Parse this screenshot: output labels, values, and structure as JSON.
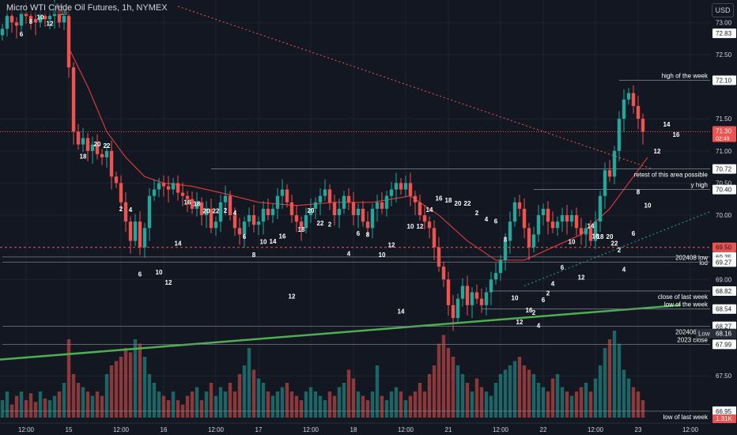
{
  "header": {
    "title": "Micro WTI Crude Oil Futures, 1h, NYMEX",
    "currency": "USD"
  },
  "colors": {
    "bg": "#131722",
    "grid": "#1f2330",
    "up": "#26a69a",
    "down": "#ef5350",
    "trend_green": "#4caf50",
    "ma": "#d43a3a",
    "dotted_red": "#ef5350",
    "text": "#d1d4dc"
  },
  "chart_data": {
    "type": "candlestick",
    "title": "Micro WTI Crude Oil Futures, 1h, NYMEX",
    "ylim": [
      66.85,
      73.25
    ],
    "y_ticks": [
      {
        "v": 73.0,
        "t": "73.00"
      },
      {
        "v": 72.5,
        "t": "72.50"
      },
      {
        "v": 71.5,
        "t": "71.50"
      },
      {
        "v": 71.0,
        "t": "71.00"
      },
      {
        "v": 70.5,
        "t": "70.50"
      },
      {
        "v": 70.0,
        "t": "70.00"
      },
      {
        "v": 69.0,
        "t": "69.00"
      },
      {
        "v": 67.5,
        "t": "67.50"
      }
    ],
    "x_ticks": [
      {
        "i": 5,
        "t": "12:00"
      },
      {
        "i": 14,
        "t": "15"
      },
      {
        "i": 25,
        "t": "12:00"
      },
      {
        "i": 34,
        "t": "16"
      },
      {
        "i": 45,
        "t": "12:00"
      },
      {
        "i": 54,
        "t": "17"
      },
      {
        "i": 65,
        "t": "12:00"
      },
      {
        "i": 74,
        "t": "18"
      },
      {
        "i": 85,
        "t": "12:00"
      },
      {
        "i": 94,
        "t": "21"
      },
      {
        "i": 105,
        "t": "12:00"
      },
      {
        "i": 114,
        "t": "22"
      },
      {
        "i": 125,
        "t": "12:00"
      },
      {
        "i": 134,
        "t": "23"
      },
      {
        "i": 145,
        "t": "12:00"
      }
    ],
    "closes": [
      72.9,
      73.1,
      73.0,
      72.95,
      73.15,
      73.1,
      73.05,
      73.0,
      73.1,
      73.05,
      73.1,
      73.2,
      73.0,
      73.1,
      72.3,
      71.3,
      71.1,
      71.2,
      71.0,
      71.1,
      70.95,
      70.9,
      71.0,
      70.6,
      70.5,
      70.2,
      69.9,
      69.6,
      69.9,
      69.5,
      69.8,
      70.3,
      70.4,
      70.5,
      70.45,
      70.4,
      70.5,
      70.35,
      70.3,
      70.25,
      70.1,
      70.2,
      70.0,
      70.1,
      69.8,
      69.9,
      70.2,
      70.3,
      70.0,
      69.8,
      69.7,
      69.9,
      70.0,
      69.85,
      69.9,
      70.1,
      70.0,
      70.1,
      70.3,
      70.4,
      70.2,
      70.0,
      69.9,
      69.8,
      70.0,
      70.1,
      70.2,
      70.3,
      70.4,
      70.2,
      70.0,
      70.1,
      70.3,
      70.2,
      70.0,
      70.1,
      69.9,
      69.8,
      70.1,
      70.2,
      70.1,
      70.3,
      70.4,
      70.5,
      70.4,
      70.5,
      70.3,
      70.2,
      70.0,
      69.9,
      69.8,
      69.5,
      69.2,
      69.0,
      68.6,
      68.4,
      68.7,
      68.9,
      68.6,
      68.8,
      68.7,
      68.6,
      68.8,
      69.0,
      69.1,
      69.3,
      69.6,
      69.9,
      70.2,
      70.1,
      69.8,
      69.5,
      69.7,
      70.0,
      70.1,
      69.9,
      69.8,
      69.9,
      70.0,
      69.9,
      70.0,
      69.8,
      69.7,
      69.8,
      69.6,
      69.9,
      70.3,
      70.7,
      70.6,
      71.0,
      71.5,
      71.8,
      71.9,
      71.7,
      71.5,
      71.3
    ],
    "opens": [
      72.8,
      72.9,
      73.1,
      73.0,
      72.95,
      73.15,
      73.1,
      73.05,
      73.0,
      73.1,
      73.05,
      73.1,
      73.2,
      73.0,
      73.1,
      72.3,
      71.3,
      71.1,
      71.2,
      71.0,
      71.1,
      70.95,
      70.9,
      71.0,
      70.6,
      70.5,
      70.2,
      69.9,
      69.6,
      69.9,
      69.5,
      69.8,
      70.3,
      70.4,
      70.5,
      70.45,
      70.4,
      70.5,
      70.35,
      70.3,
      70.25,
      70.1,
      70.2,
      70.0,
      70.1,
      69.8,
      69.9,
      70.2,
      70.3,
      70.0,
      69.8,
      69.7,
      69.9,
      70.0,
      69.85,
      69.9,
      70.1,
      70.0,
      70.1,
      70.3,
      70.4,
      70.2,
      70.0,
      69.9,
      69.8,
      70.0,
      70.1,
      70.2,
      70.3,
      70.4,
      70.2,
      70.0,
      70.1,
      70.3,
      70.2,
      70.0,
      70.1,
      69.9,
      69.8,
      70.1,
      70.2,
      70.1,
      70.3,
      70.4,
      70.5,
      70.4,
      70.5,
      70.3,
      70.2,
      70.0,
      69.9,
      69.8,
      69.5,
      69.2,
      69.0,
      68.6,
      68.4,
      68.7,
      68.9,
      68.6,
      68.8,
      68.7,
      68.6,
      68.8,
      69.0,
      69.1,
      69.3,
      69.6,
      69.9,
      70.2,
      70.1,
      69.8,
      69.5,
      69.7,
      70.0,
      70.1,
      69.9,
      69.8,
      69.9,
      70.0,
      69.9,
      70.0,
      69.8,
      69.7,
      69.8,
      69.6,
      69.9,
      70.3,
      70.7,
      70.6,
      71.0,
      71.5,
      71.8,
      71.9,
      71.7,
      71.5
    ],
    "volumes": [
      0.2,
      0.3,
      0.15,
      0.25,
      0.3,
      0.2,
      0.28,
      0.18,
      0.3,
      0.22,
      0.2,
      0.25,
      0.3,
      0.4,
      0.9,
      0.5,
      0.4,
      0.35,
      0.3,
      0.25,
      0.3,
      0.25,
      0.5,
      0.6,
      0.65,
      0.7,
      0.8,
      0.75,
      0.9,
      0.85,
      0.7,
      0.5,
      0.4,
      0.3,
      0.25,
      0.2,
      0.3,
      0.2,
      0.15,
      0.25,
      0.3,
      0.35,
      0.2,
      0.3,
      0.4,
      0.25,
      0.35,
      0.3,
      0.4,
      0.3,
      0.5,
      0.6,
      0.8,
      0.55,
      0.45,
      0.4,
      0.3,
      0.25,
      0.3,
      0.35,
      0.4,
      0.3,
      0.25,
      0.2,
      0.3,
      0.35,
      0.3,
      0.25,
      0.2,
      0.3,
      0.25,
      0.35,
      0.4,
      0.55,
      0.45,
      0.3,
      0.25,
      0.2,
      0.3,
      0.6,
      0.25,
      0.2,
      0.3,
      0.35,
      0.3,
      0.2,
      0.25,
      0.3,
      0.4,
      0.3,
      0.5,
      0.6,
      0.85,
      0.95,
      0.8,
      0.7,
      0.6,
      0.5,
      0.4,
      0.3,
      0.45,
      0.35,
      0.3,
      0.25,
      0.4,
      0.5,
      0.55,
      0.6,
      0.65,
      0.7,
      0.6,
      0.55,
      0.5,
      0.4,
      0.35,
      0.3,
      0.45,
      0.5,
      0.35,
      0.3,
      0.25,
      0.3,
      0.35,
      0.4,
      0.3,
      0.45,
      0.6,
      0.8,
      0.9,
      1.0,
      0.85,
      0.55,
      0.45,
      0.35,
      0.3,
      0.2
    ],
    "moving_average": [
      {
        "i": 14,
        "v": 72.6
      },
      {
        "i": 18,
        "v": 72.0
      },
      {
        "i": 22,
        "v": 71.3
      },
      {
        "i": 26,
        "v": 70.9
      },
      {
        "i": 30,
        "v": 70.6
      },
      {
        "i": 34,
        "v": 70.5
      },
      {
        "i": 40,
        "v": 70.45
      },
      {
        "i": 46,
        "v": 70.35
      },
      {
        "i": 54,
        "v": 70.2
      },
      {
        "i": 62,
        "v": 70.15
      },
      {
        "i": 70,
        "v": 70.2
      },
      {
        "i": 78,
        "v": 70.2
      },
      {
        "i": 86,
        "v": 70.3
      },
      {
        "i": 92,
        "v": 70.0
      },
      {
        "i": 98,
        "v": 69.6
      },
      {
        "i": 104,
        "v": 69.3
      },
      {
        "i": 110,
        "v": 69.3
      },
      {
        "i": 116,
        "v": 69.5
      },
      {
        "i": 122,
        "v": 69.7
      },
      {
        "i": 128,
        "v": 70.1
      },
      {
        "i": 133,
        "v": 70.6
      },
      {
        "i": 136,
        "v": 70.9
      }
    ],
    "green_trendline": {
      "from": {
        "i": -6,
        "v": 67.72
      },
      "to": {
        "i": 143,
        "v": 68.6
      }
    },
    "red_dotted_trendline": {
      "from": {
        "i": 37,
        "v": 73.25
      },
      "to": {
        "i": 137,
        "v": 70.72
      }
    },
    "green_dotted_trendline": {
      "from": {
        "i": 110,
        "v": 68.9
      },
      "to": {
        "i": 149,
        "v": 70.05
      }
    },
    "current_price": 71.3,
    "horizontal_levels": [
      {
        "value": 72.1,
        "label": "high of the week",
        "tag": "72.10",
        "start_i": 130
      },
      {
        "value": 70.72,
        "label": "retest of this area possible",
        "tag": "70.72",
        "start_i": 44
      },
      {
        "value": 70.4,
        "label": "y high",
        "tag": "70.40",
        "start_i": 112
      },
      {
        "value": 69.35,
        "label": "lod",
        "tag": "69.35",
        "start_i": 0
      },
      {
        "value": 69.27,
        "label": "202408 low",
        "tag": "69.27",
        "start_i": 0
      },
      {
        "value": 68.82,
        "label": "close of last week",
        "tag": "68.82",
        "start_i": 103
      },
      {
        "value": 68.54,
        "label": "low of the week",
        "tag": "68.54",
        "start_i": 101
      },
      {
        "value": 68.27,
        "label": "202406 low",
        "tag": "68.27",
        "start_i": 0
      },
      {
        "value": 67.99,
        "label": "2023 close",
        "tag": "67.99",
        "start_i": 0
      },
      {
        "value": 66.95,
        "label": "low of last week",
        "tag": "66.95",
        "start_i": 0
      }
    ],
    "red_level": {
      "value": 69.5,
      "tag": "69.50"
    },
    "price_tag": {
      "value": "71.30",
      "countdown": "02:49"
    },
    "low_tag": {
      "label": "Low",
      "value": "68.16"
    },
    "volume_tag": "1.31K",
    "tick_tags": [
      {
        "v": 72.83,
        "t": "72.83"
      }
    ],
    "session_numbers": [
      {
        "i": 4,
        "v": 72.78,
        "t": "6"
      },
      {
        "i": 6,
        "v": 72.98,
        "t": "8"
      },
      {
        "i": 8,
        "v": 73.05,
        "t": "10"
      },
      {
        "i": 10,
        "v": 72.95,
        "t": "12"
      },
      {
        "i": 12,
        "v": 73.22,
        "t": "14"
      },
      {
        "i": 13,
        "v": 73.12,
        "t": "16"
      },
      {
        "i": 17,
        "v": 70.88,
        "t": "18"
      },
      {
        "i": 20,
        "v": 71.07,
        "t": "20"
      },
      {
        "i": 22,
        "v": 71.05,
        "t": "22"
      },
      {
        "i": 25,
        "v": 70.06,
        "t": "2"
      },
      {
        "i": 27,
        "v": 70.05,
        "t": "4"
      },
      {
        "i": 29,
        "v": 69.05,
        "t": "6"
      },
      {
        "i": 33,
        "v": 69.08,
        "t": "10"
      },
      {
        "i": 35,
        "v": 68.92,
        "t": "12"
      },
      {
        "i": 37,
        "v": 69.53,
        "t": "14"
      },
      {
        "i": 39,
        "v": 70.17,
        "t": "16"
      },
      {
        "i": 41,
        "v": 70.14,
        "t": "18"
      },
      {
        "i": 43,
        "v": 70.03,
        "t": "20"
      },
      {
        "i": 45,
        "v": 70.03,
        "t": "22"
      },
      {
        "i": 47,
        "v": 70.04,
        "t": "2"
      },
      {
        "i": 49,
        "v": 70.0,
        "t": "4"
      },
      {
        "i": 51,
        "v": 69.63,
        "t": "6"
      },
      {
        "i": 53,
        "v": 69.35,
        "t": "8"
      },
      {
        "i": 55,
        "v": 69.55,
        "t": "10"
      },
      {
        "i": 57,
        "v": 69.56,
        "t": "14"
      },
      {
        "i": 59,
        "v": 69.64,
        "t": "16"
      },
      {
        "i": 61,
        "v": 68.7,
        "t": "12"
      },
      {
        "i": 63,
        "v": 69.74,
        "t": "18"
      },
      {
        "i": 65,
        "v": 70.04,
        "t": "20"
      },
      {
        "i": 67,
        "v": 69.84,
        "t": "22"
      },
      {
        "i": 69,
        "v": 69.82,
        "t": "2"
      },
      {
        "i": 73,
        "v": 69.37,
        "t": "4"
      },
      {
        "i": 75,
        "v": 69.68,
        "t": "6"
      },
      {
        "i": 77,
        "v": 69.66,
        "t": "8"
      },
      {
        "i": 80,
        "v": 69.35,
        "t": "10"
      },
      {
        "i": 82,
        "v": 69.5,
        "t": "12"
      },
      {
        "i": 84,
        "v": 68.47,
        "t": "14"
      },
      {
        "i": 86,
        "v": 69.79,
        "t": "10"
      },
      {
        "i": 88,
        "v": 69.79,
        "t": "12"
      },
      {
        "i": 90,
        "v": 70.05,
        "t": "14"
      },
      {
        "i": 92,
        "v": 70.23,
        "t": "16"
      },
      {
        "i": 94,
        "v": 70.2,
        "t": "18"
      },
      {
        "i": 96,
        "v": 70.15,
        "t": "20"
      },
      {
        "i": 98,
        "v": 70.15,
        "t": "22"
      },
      {
        "i": 100,
        "v": 70.0,
        "t": "2"
      },
      {
        "i": 102,
        "v": 69.9,
        "t": "4"
      },
      {
        "i": 104,
        "v": 69.87,
        "t": "6"
      },
      {
        "i": 106,
        "v": 69.59,
        "t": "8"
      },
      {
        "i": 108,
        "v": 68.68,
        "t": "10"
      },
      {
        "i": 109,
        "v": 68.3,
        "t": "12"
      },
      {
        "i": 111,
        "v": 68.49,
        "t": "16"
      },
      {
        "i": 112,
        "v": 68.45,
        "t": "2"
      },
      {
        "i": 113,
        "v": 68.25,
        "t": "4"
      },
      {
        "i": 114,
        "v": 68.65,
        "t": "6"
      },
      {
        "i": 115,
        "v": 68.75,
        "t": "2"
      },
      {
        "i": 116,
        "v": 68.9,
        "t": "4"
      },
      {
        "i": 118,
        "v": 69.15,
        "t": "6"
      },
      {
        "i": 120,
        "v": 69.55,
        "t": "10"
      },
      {
        "i": 122,
        "v": 69.0,
        "t": "12"
      },
      {
        "i": 124,
        "v": 69.8,
        "t": "14"
      },
      {
        "i": 125,
        "v": 69.64,
        "t": "16"
      },
      {
        "i": 126,
        "v": 69.63,
        "t": "18"
      },
      {
        "i": 128,
        "v": 69.63,
        "t": "20"
      },
      {
        "i": 129,
        "v": 69.53,
        "t": "22"
      },
      {
        "i": 130,
        "v": 69.42,
        "t": "2"
      },
      {
        "i": 131,
        "v": 69.12,
        "t": "4"
      },
      {
        "i": 133,
        "v": 69.68,
        "t": "6"
      },
      {
        "i": 134,
        "v": 70.33,
        "t": "8"
      },
      {
        "i": 136,
        "v": 70.12,
        "t": "10"
      },
      {
        "i": 138,
        "v": 70.96,
        "t": "12"
      },
      {
        "i": 140,
        "v": 71.38,
        "t": "14"
      },
      {
        "i": 142,
        "v": 71.22,
        "t": "16"
      }
    ]
  }
}
